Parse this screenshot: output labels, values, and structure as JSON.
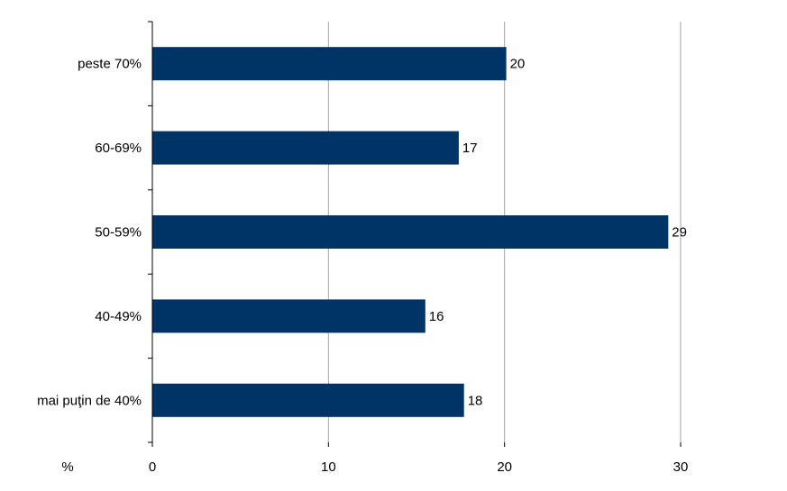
{
  "chart_data": {
    "type": "bar",
    "orientation": "horizontal",
    "categories": [
      "peste 70%",
      "60-69%",
      "50-59%",
      "40-49%",
      "mai puţin de 40%"
    ],
    "values": [
      20.1,
      17.4,
      29.3,
      15.5,
      17.7
    ],
    "value_labels": [
      "20",
      "17",
      "29",
      "16",
      "18"
    ],
    "x_ticks": [
      0,
      10,
      20,
      30
    ],
    "xlim": [
      0,
      30
    ],
    "unit_label": "%",
    "grid": "vertical",
    "bar_color": "#003366",
    "title": ""
  }
}
